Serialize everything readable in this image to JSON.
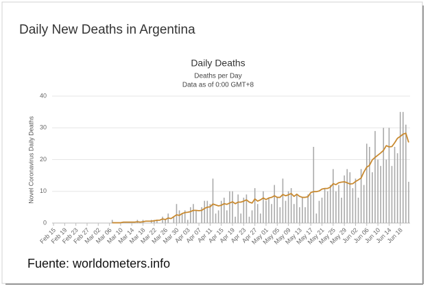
{
  "header": {
    "title": "Daily New Deaths in Argentina"
  },
  "source": "Fuente: worldometers.info",
  "chart_data": {
    "type": "bar",
    "title": "Daily Deaths",
    "subtitle": "Deaths per Day",
    "note": "Data as of 0:00 GMT+8",
    "y_label": "Novel Coronavirus Daily Deaths",
    "ylim": [
      0,
      40
    ],
    "yticks": [
      0,
      10,
      20,
      30,
      40
    ],
    "grid": true,
    "categories": [
      "Feb 15",
      null,
      null,
      null,
      "Feb 19",
      null,
      null,
      null,
      "Feb 23",
      null,
      null,
      null,
      "Feb 27",
      null,
      null,
      null,
      "Mar 02",
      null,
      null,
      null,
      "Mar 06",
      null,
      null,
      null,
      "Mar 10",
      null,
      null,
      null,
      "Mar 14",
      null,
      null,
      null,
      "Mar 18",
      null,
      null,
      null,
      "Mar 22",
      null,
      null,
      null,
      "Mar 26",
      null,
      null,
      null,
      "Mar 30",
      null,
      null,
      null,
      "Apr 03",
      null,
      null,
      null,
      "Apr 07",
      null,
      null,
      null,
      "Apr 11",
      null,
      null,
      null,
      "Apr 15",
      null,
      null,
      null,
      "Apr 19",
      null,
      null,
      null,
      "Apr 23",
      null,
      null,
      null,
      "Apr 27",
      null,
      null,
      null,
      "May 01",
      null,
      null,
      null,
      "May 05",
      null,
      null,
      null,
      "May 09",
      null,
      null,
      null,
      "May 13",
      null,
      null,
      null,
      "May 17",
      null,
      null,
      null,
      "May 21",
      null,
      null,
      null,
      "May 25",
      null,
      null,
      null,
      "May 29",
      null,
      null,
      null,
      "Jun 02",
      null,
      null,
      null,
      "Jun 06",
      null,
      null,
      null,
      "Jun 10",
      null,
      null,
      null,
      "Jun 14",
      null,
      null,
      null,
      "Jun 18",
      null,
      null,
      null
    ],
    "series": [
      {
        "type": "bar",
        "color": "#a9a9a9",
        "values": [
          0,
          0,
          0,
          0,
          0,
          0,
          0,
          0,
          0,
          0,
          0,
          0,
          0,
          0,
          0,
          0,
          0,
          0,
          0,
          0,
          0,
          1,
          0,
          0,
          0,
          0,
          0,
          0,
          0,
          0,
          1,
          0,
          1,
          0,
          0,
          1,
          1,
          1,
          0,
          2,
          1,
          3,
          0,
          2,
          6,
          4,
          3,
          4,
          1,
          5,
          6,
          4,
          0,
          5,
          7,
          7,
          6,
          14,
          3,
          4,
          7,
          8,
          4,
          10,
          10,
          2,
          9,
          3,
          8,
          9,
          2,
          4,
          11,
          6,
          3,
          10,
          7,
          8,
          6,
          12,
          8,
          5,
          14,
          7,
          10,
          11,
          6,
          9,
          5,
          8,
          5,
          9,
          9,
          24,
          3,
          7,
          8,
          11,
          10,
          12,
          17,
          10,
          12,
          8,
          15,
          17,
          16,
          11,
          14,
          8,
          17,
          12,
          25,
          24,
          16,
          29,
          20,
          18,
          30,
          20,
          30,
          18,
          24,
          22,
          35,
          35,
          31,
          13
        ]
      },
      {
        "type": "line",
        "color": "#c8892f",
        "values": [
          null,
          null,
          null,
          null,
          null,
          null,
          null,
          null,
          null,
          null,
          null,
          null,
          null,
          null,
          null,
          null,
          null,
          null,
          null,
          null,
          null,
          0.1,
          0.1,
          0.1,
          0.1,
          0.3,
          0.3,
          0.3,
          0.3,
          0.3,
          0.4,
          0.3,
          0.4,
          0.6,
          0.6,
          0.6,
          0.7,
          0.9,
          0.9,
          1.3,
          1.1,
          1.6,
          1.4,
          2,
          2.6,
          2.4,
          3,
          3.3,
          3.4,
          3.6,
          4,
          4,
          3.9,
          4,
          4.6,
          5,
          5.1,
          6,
          5.7,
          5.4,
          5.6,
          6.1,
          5.9,
          6.3,
          6.7,
          6.1,
          6.6,
          6.6,
          6.9,
          7.3,
          6.6,
          6.3,
          7.6,
          6.9,
          7.3,
          7.9,
          7.4,
          7.9,
          8.1,
          8.6,
          8.1,
          8.1,
          9,
          8.6,
          8.9,
          9.3,
          8.4,
          9.1,
          8.4,
          8.1,
          8.1,
          8.3,
          9.6,
          9.9,
          9.9,
          10.1,
          10.7,
          10.9,
          10.9,
          11.3,
          12.4,
          12.1,
          12.7,
          12.9,
          13,
          12.7,
          12.3,
          12.4,
          13.1,
          13.6,
          14.2,
          16.1,
          17.6,
          18.2,
          19.9,
          20.7,
          21.4,
          22.1,
          22.9,
          24.4,
          24,
          24.1,
          25.3,
          26.7,
          27.3,
          28,
          28.3,
          25.4
        ]
      }
    ]
  }
}
